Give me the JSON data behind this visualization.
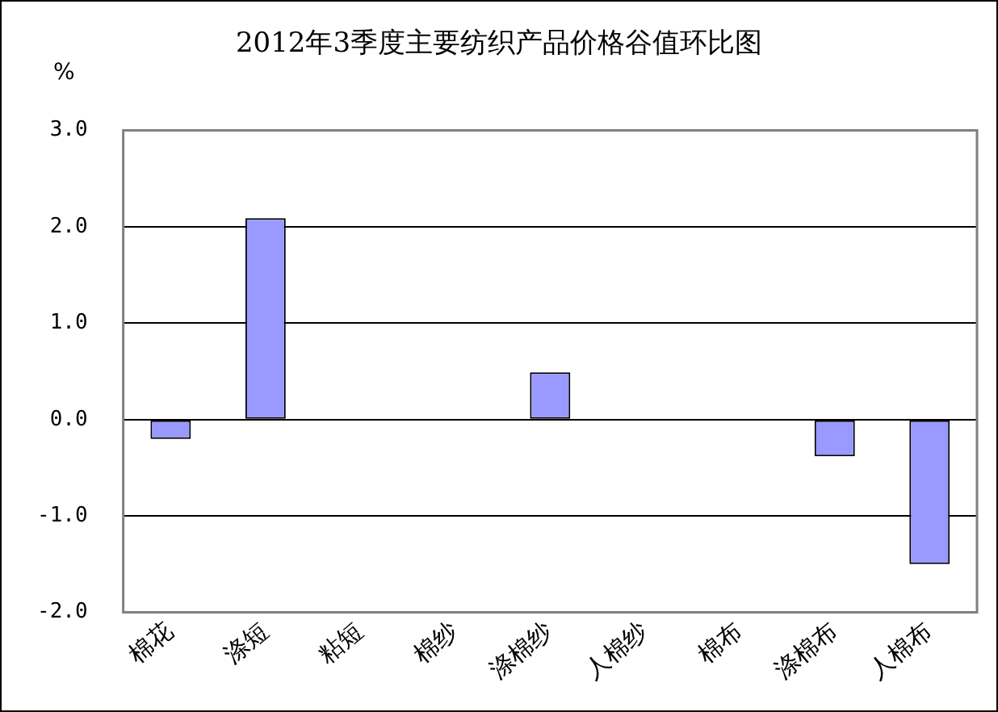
{
  "chart_data": {
    "type": "bar",
    "title": "2012年3季度主要纺织产品价格谷值环比图",
    "ylabel": "%",
    "categories": [
      "棉花",
      "涤短",
      "粘短",
      "棉纱",
      "涤棉纱",
      "人棉纱",
      "棉布",
      "涤棉布",
      "人棉布"
    ],
    "values": [
      -0.2,
      2.09,
      0,
      0,
      0.49,
      0,
      0,
      -0.38,
      -1.5
    ],
    "color": "#9999ff",
    "ylim": [
      -2,
      3
    ],
    "yticks": [
      {
        "value": -2,
        "label": "-2.0"
      },
      {
        "value": -1,
        "label": "-1.0"
      },
      {
        "value": 0,
        "label": "0.0"
      },
      {
        "value": 1,
        "label": "1.0"
      },
      {
        "value": 2,
        "label": "2.0"
      },
      {
        "value": 3,
        "label": "3.0"
      }
    ],
    "grid": "y",
    "legend": false
  }
}
